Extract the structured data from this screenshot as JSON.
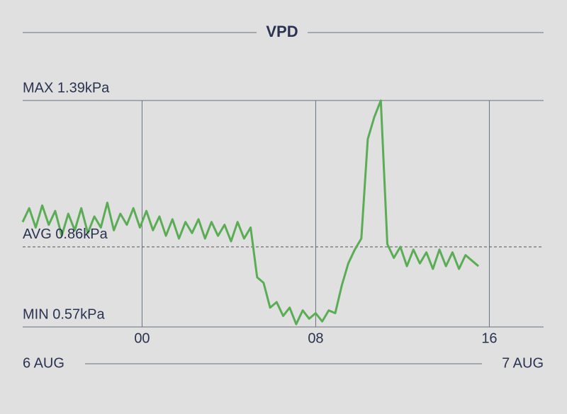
{
  "chart_data": {
    "type": "line",
    "title": "VPD",
    "date_start": "6 AUG",
    "date_end": "7 AUG",
    "x": [
      -5.5,
      -5.2,
      -4.9,
      -4.6,
      -4.3,
      -4.0,
      -3.7,
      -3.4,
      -3.1,
      -2.8,
      -2.5,
      -2.2,
      -1.9,
      -1.6,
      -1.3,
      -1.0,
      -0.7,
      -0.4,
      -0.1,
      0.2,
      0.5,
      0.8,
      1.1,
      1.4,
      1.7,
      2.0,
      2.3,
      2.6,
      2.9,
      3.2,
      3.5,
      3.8,
      4.1,
      4.4,
      4.7,
      5.0,
      5.3,
      5.6,
      5.9,
      6.2,
      6.5,
      6.8,
      7.1,
      7.4,
      7.7,
      8.0,
      8.3,
      8.6,
      8.9,
      9.2,
      9.5,
      9.8,
      10.1,
      10.4,
      10.7,
      11.0,
      11.3,
      11.6,
      11.9,
      12.2,
      12.5,
      12.8,
      13.1,
      13.4,
      13.7,
      14.0,
      14.3,
      14.6,
      14.9,
      15.2,
      15.5
    ],
    "series": [
      {
        "name": "VPD",
        "color": "#5aad55",
        "values": [
          0.95,
          1.0,
          0.93,
          1.01,
          0.94,
          0.99,
          0.9,
          0.98,
          0.92,
          1.0,
          0.91,
          0.97,
          0.93,
          1.02,
          0.92,
          0.98,
          0.94,
          1.0,
          0.93,
          0.99,
          0.92,
          0.97,
          0.9,
          0.96,
          0.89,
          0.95,
          0.91,
          0.96,
          0.89,
          0.95,
          0.9,
          0.94,
          0.88,
          0.95,
          0.89,
          0.93,
          0.75,
          0.73,
          0.64,
          0.66,
          0.61,
          0.64,
          0.58,
          0.63,
          0.6,
          0.62,
          0.59,
          0.63,
          0.62,
          0.72,
          0.8,
          0.85,
          0.89,
          1.25,
          1.33,
          1.39,
          0.87,
          0.82,
          0.86,
          0.79,
          0.85,
          0.8,
          0.84,
          0.78,
          0.85,
          0.79,
          0.84,
          0.78,
          0.83,
          0.81,
          0.79
        ]
      }
    ],
    "xlim": [
      -5.5,
      18.5
    ],
    "xticks": [
      {
        "value": 0,
        "label": "00"
      },
      {
        "value": 8,
        "label": "08"
      },
      {
        "value": 16,
        "label": "16"
      }
    ],
    "ylim": [
      0.57,
      1.39
    ],
    "reference_lines": [
      {
        "text": "MAX 1.39kPa",
        "value": 1.39,
        "style": "solid"
      },
      {
        "text": "AVG 0.86kPa",
        "value": 0.86,
        "style": "dashed"
      },
      {
        "text": "MIN 0.57kPa",
        "value": 0.57,
        "style": "solid"
      }
    ],
    "grid": true
  }
}
